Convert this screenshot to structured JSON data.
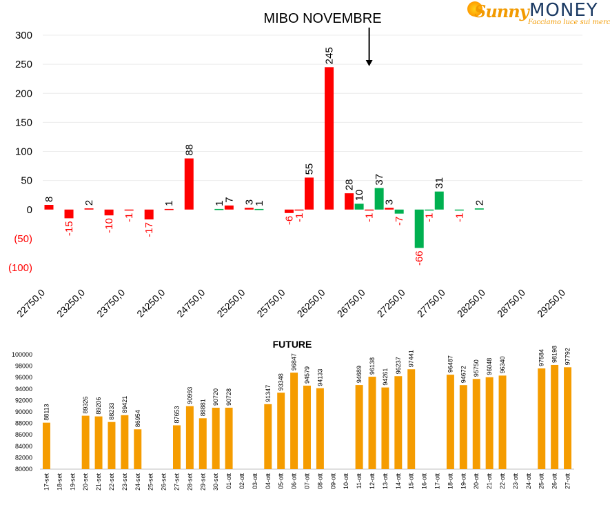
{
  "logo": {
    "word1": "Sunny",
    "word2": "MONEY",
    "tagline": "Facciamo luce sui mercati"
  },
  "chart_data": [
    {
      "type": "bar",
      "title": "MIBO NOVEMBRE",
      "ylim": [
        -100,
        300
      ],
      "yticks": [
        300,
        250,
        200,
        150,
        100,
        50,
        0,
        -50,
        -100
      ],
      "ytick_labels": [
        "300",
        "250",
        "200",
        "150",
        "100",
        "50",
        "0",
        "(50)",
        "(100)"
      ],
      "xtick_labels": [
        "22750,0",
        "23250,0",
        "23750,0",
        "24250,0",
        "24750,0",
        "25250,0",
        "25750,0",
        "26250,0",
        "26750,0",
        "27250,0",
        "27750,0",
        "28250,0",
        "28750,0",
        "29250,0"
      ],
      "x_range": [
        22750,
        29250
      ],
      "arrow_at": 26750,
      "colors": {
        "red": "#ff0000",
        "green": "#00b050",
        "neg_label": "#ff0000"
      },
      "series": [
        {
          "color": "red",
          "points": [
            {
              "x": 22750,
              "y": 8
            },
            {
              "x": 23000,
              "y": -15
            },
            {
              "x": 23250,
              "y": 2
            },
            {
              "x": 23500,
              "y": -10
            },
            {
              "x": 23750,
              "y": -1
            },
            {
              "x": 24000,
              "y": -17
            },
            {
              "x": 24250,
              "y": 1
            },
            {
              "x": 24500,
              "y": 88
            },
            {
              "x": 25000,
              "y": 7
            },
            {
              "x": 25250,
              "y": 3
            },
            {
              "x": 25750,
              "y": -6
            },
            {
              "x": 25875,
              "y": -1
            },
            {
              "x": 26000,
              "y": 55
            },
            {
              "x": 26250,
              "y": 245
            },
            {
              "x": 26500,
              "y": 28
            },
            {
              "x": 26750,
              "y": -1
            },
            {
              "x": 27000,
              "y": 3
            }
          ]
        },
        {
          "color": "green",
          "points": [
            {
              "x": 24875,
              "y": 1
            },
            {
              "x": 25375,
              "y": 1
            },
            {
              "x": 26625,
              "y": 10
            },
            {
              "x": 26875,
              "y": 37
            },
            {
              "x": 27125,
              "y": -7
            },
            {
              "x": 27375,
              "y": -66
            },
            {
              "x": 27500,
              "y": -1
            },
            {
              "x": 27625,
              "y": 31
            },
            {
              "x": 27875,
              "y": -1
            },
            {
              "x": 28125,
              "y": 2
            }
          ]
        }
      ]
    },
    {
      "type": "bar",
      "title": "FUTURE",
      "ylim": [
        80000,
        100000
      ],
      "yticks": [
        80000,
        82000,
        84000,
        86000,
        88000,
        90000,
        92000,
        94000,
        96000,
        98000,
        100000
      ],
      "bar_color": "#f59c00",
      "categories": [
        "17-set",
        "18-set",
        "19-set",
        "20-set",
        "21-set",
        "22-set",
        "23-set",
        "24-set",
        "25-set",
        "26-set",
        "27-set",
        "28-set",
        "29-set",
        "30-set",
        "01-ott",
        "02-ott",
        "03-ott",
        "04-ott",
        "05-ott",
        "06-ott",
        "07-ott",
        "08-ott",
        "09-ott",
        "10-ott",
        "11-ott",
        "12-ott",
        "13-ott",
        "14-ott",
        "15-ott",
        "16-ott",
        "17-ott",
        "18-ott",
        "19-ott",
        "20-ott",
        "21-ott",
        "22-ott",
        "23-ott",
        "24-ott",
        "25-ott",
        "26-ott",
        "27-ott"
      ],
      "values": [
        88113,
        null,
        null,
        89326,
        89206,
        88233,
        89421,
        86954,
        null,
        null,
        87653,
        90993,
        88881,
        90720,
        90728,
        null,
        null,
        91347,
        93348,
        96847,
        94579,
        94133,
        null,
        null,
        94689,
        96138,
        94261,
        96237,
        97441,
        null,
        null,
        96487,
        94672,
        95750,
        96048,
        96340,
        null,
        null,
        97584,
        98198,
        97792
      ]
    }
  ]
}
